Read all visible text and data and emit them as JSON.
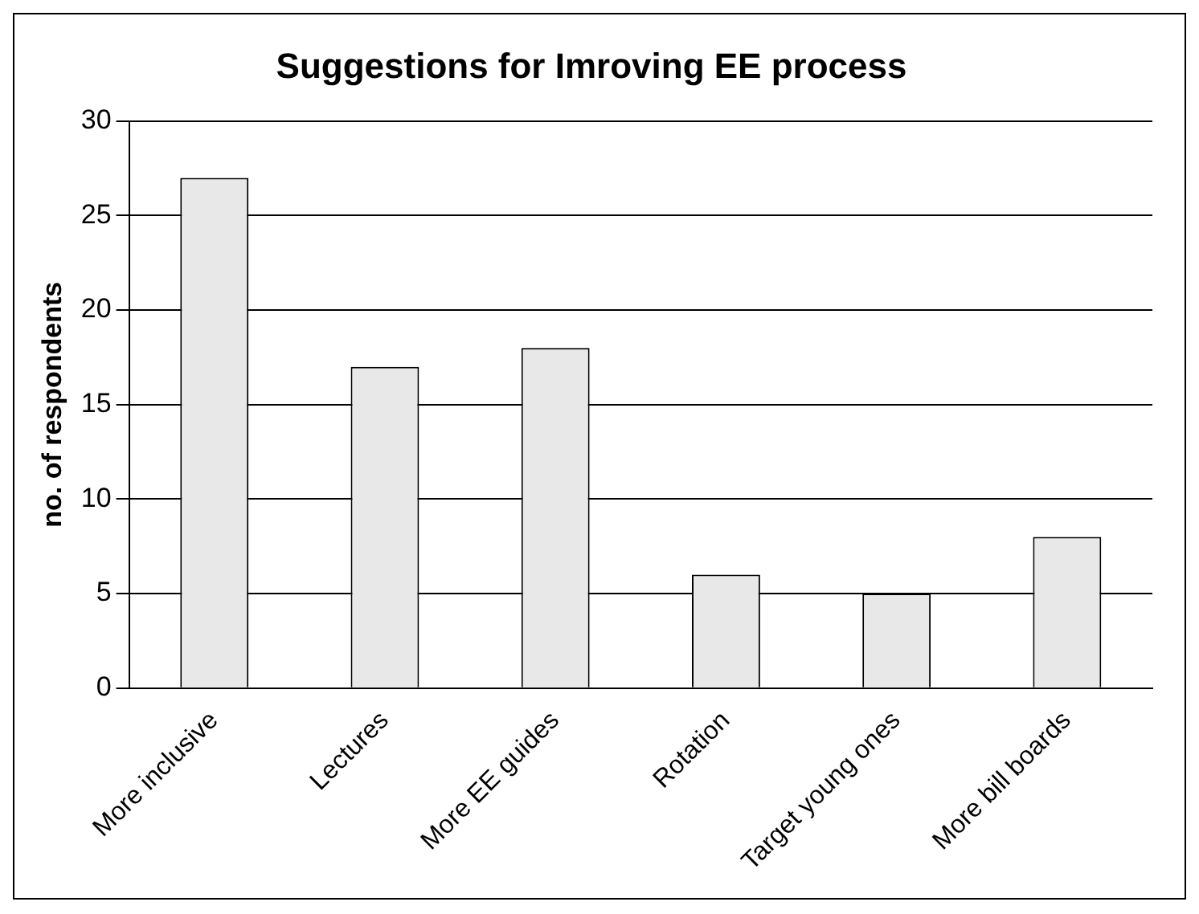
{
  "chart_data": {
    "type": "bar",
    "title": "Suggestions for Imroving EE process",
    "ylabel": "no. of respondents",
    "categories": [
      "More inclusive",
      "Lectures",
      "More EE guides",
      "Rotation",
      "Target young ones",
      "More bill boards"
    ],
    "values": [
      27,
      17,
      18,
      6,
      5,
      8
    ],
    "color": "#e8e8e8",
    "ylim": [
      0,
      30
    ],
    "yticks": [
      0,
      5,
      10,
      15,
      20,
      25,
      30
    ],
    "grid": "y",
    "legend": false
  }
}
